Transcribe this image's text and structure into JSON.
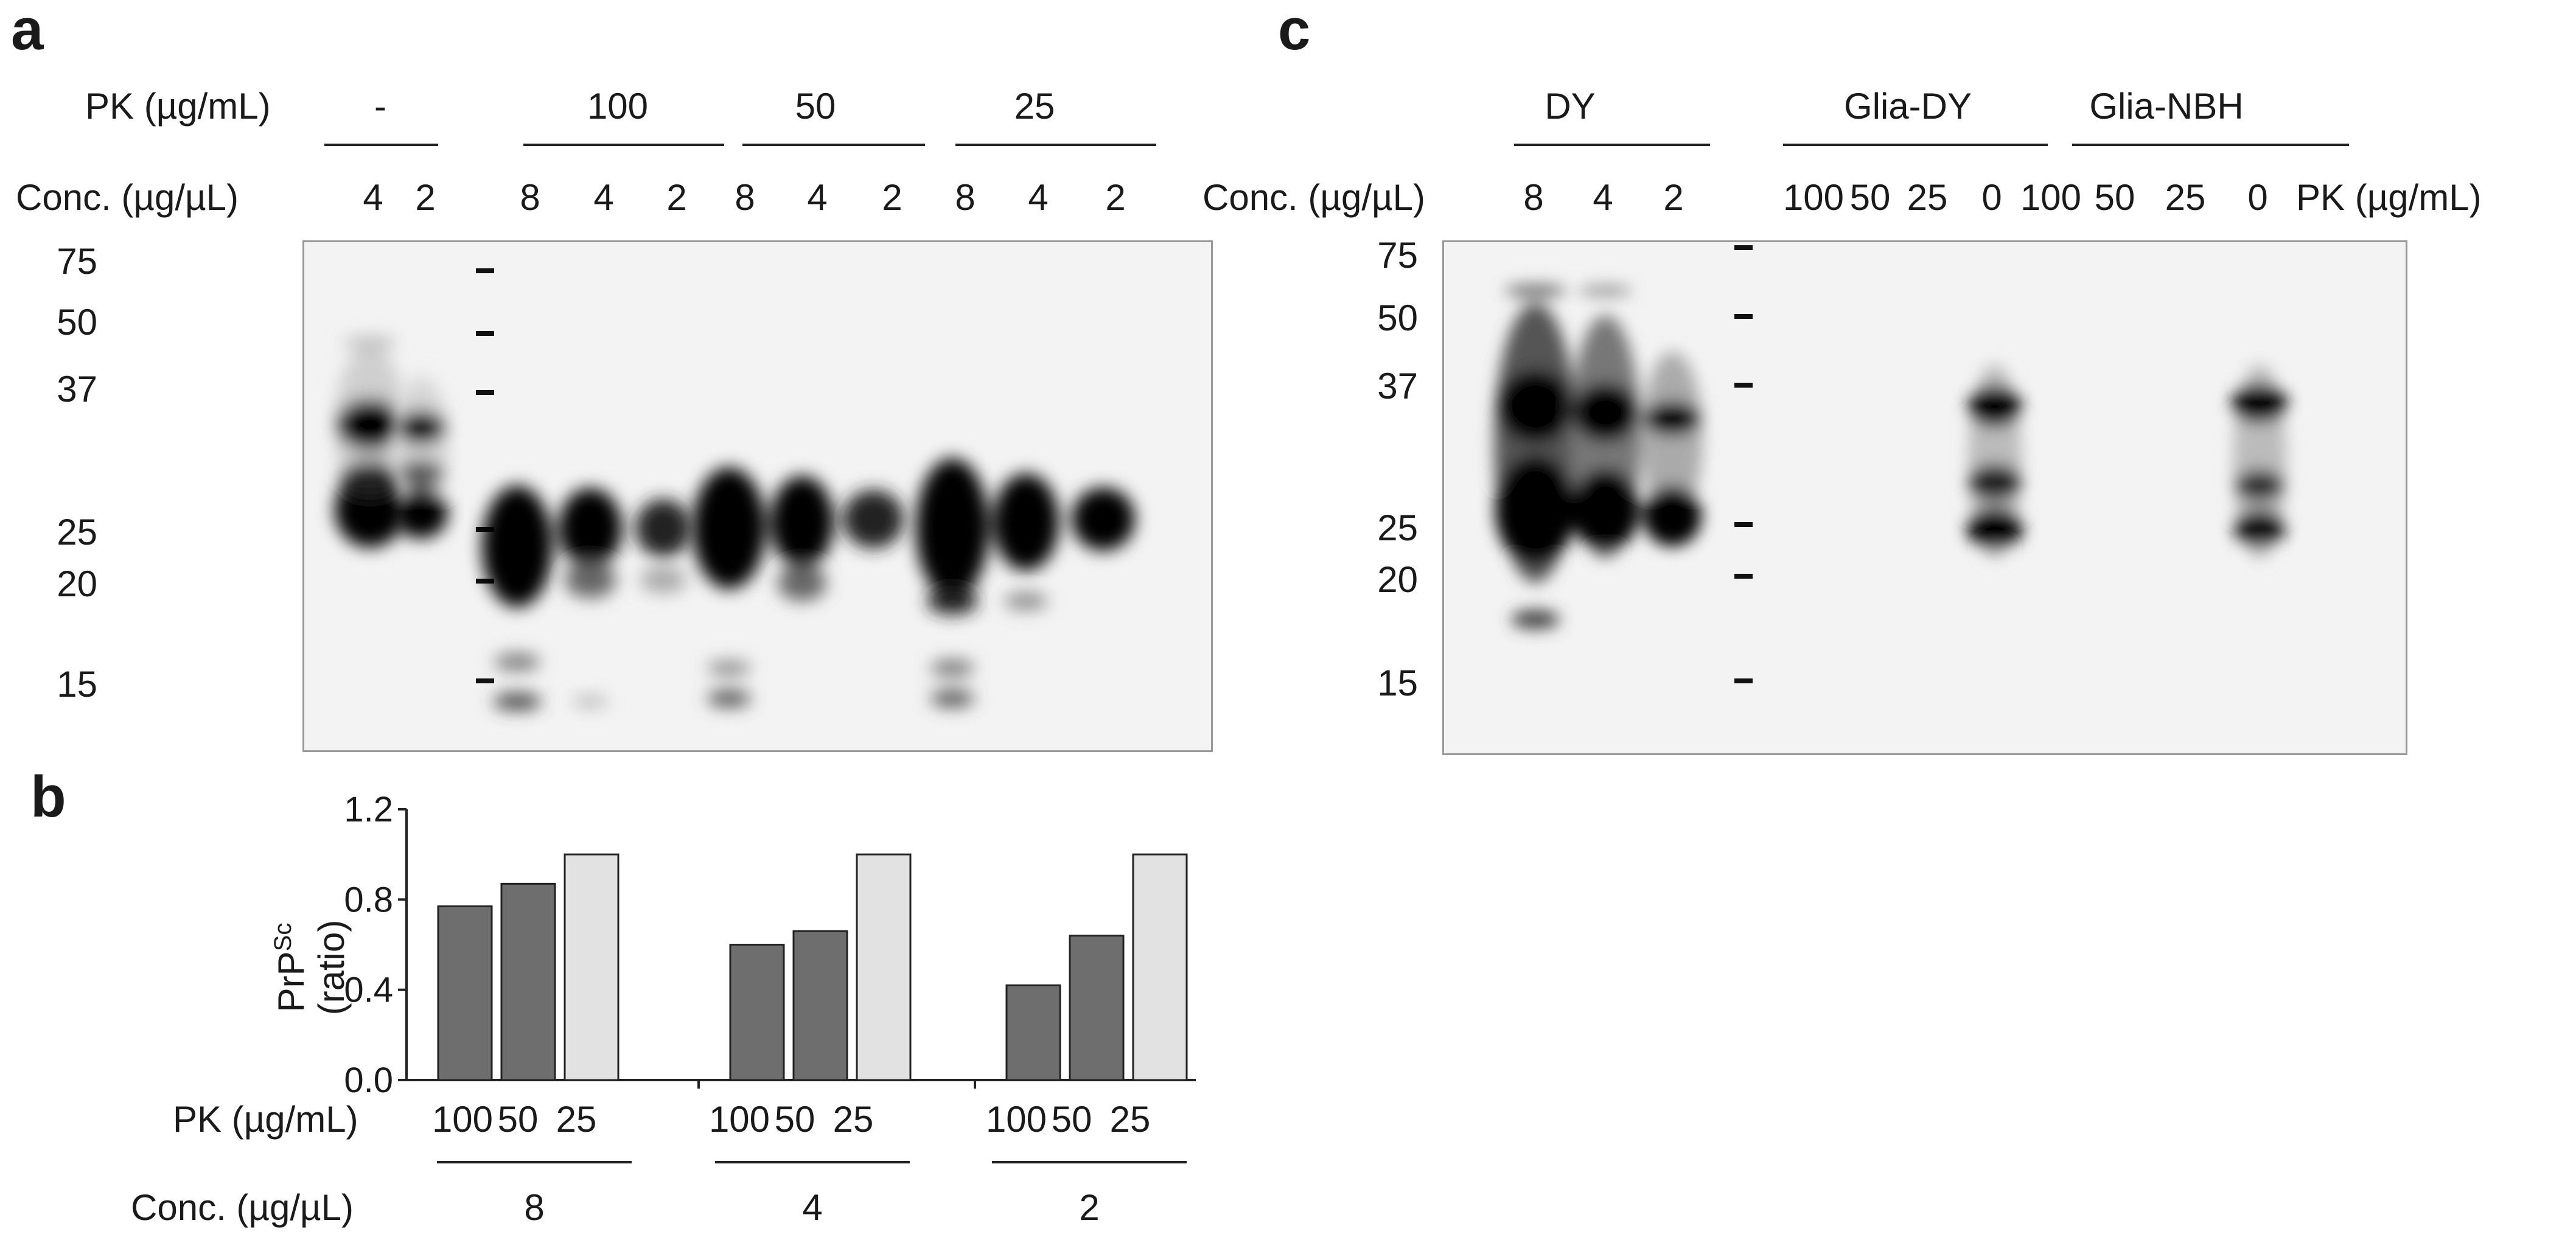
{
  "panel_a": {
    "letter": "a",
    "pk_label": "PK (µg/mL)",
    "pk_groups": [
      "-",
      "100",
      "50",
      "25"
    ],
    "conc_label": "Conc. (µg/µL)",
    "conc_lanes": [
      "4",
      "2",
      "8",
      "4",
      "2",
      "8",
      "4",
      "2",
      "8",
      "4",
      "2"
    ],
    "markers": [
      "75",
      "50",
      "37",
      "25",
      "20",
      "15"
    ]
  },
  "panel_b": {
    "letter": "b",
    "pk_label": "PK (µg/mL)",
    "pk_values": [
      "100",
      "50",
      "25",
      "100",
      "50",
      "25",
      "100",
      "50",
      "25"
    ],
    "conc_label": "Conc. (µg/µL)",
    "conc_groups": [
      "8",
      "4",
      "2"
    ]
  },
  "panel_c": {
    "letter": "c",
    "groups": [
      "DY",
      "Glia-DY",
      "Glia-NBH"
    ],
    "conc_label": "Conc. (µg/µL)",
    "conc_lanes": [
      "8",
      "4",
      "2"
    ],
    "pk_lanes": [
      "100",
      "50",
      "25",
      "0",
      "100",
      "50",
      "25",
      "0"
    ],
    "pk_label": "PK (µg/mL)",
    "markers": [
      "75",
      "50",
      "37",
      "25",
      "20",
      "15"
    ]
  },
  "chart_data": {
    "type": "bar",
    "ylabel_main": "PrP",
    "ylabel_sup": "Sc",
    "ylabel_sub": "(ratio)",
    "ylim": [
      0,
      1.2
    ],
    "yticks": [
      "0.0",
      "0.4",
      "0.8",
      "1.2"
    ],
    "groups": [
      "8",
      "4",
      "2"
    ],
    "categories": [
      "100",
      "50",
      "25"
    ],
    "values": [
      [
        0.77,
        0.87,
        1.0
      ],
      [
        0.6,
        0.66,
        1.0
      ],
      [
        0.42,
        0.64,
        1.0
      ]
    ],
    "colors": [
      "#6e6e6e",
      "#6e6e6e",
      "#e2e2e2"
    ]
  }
}
